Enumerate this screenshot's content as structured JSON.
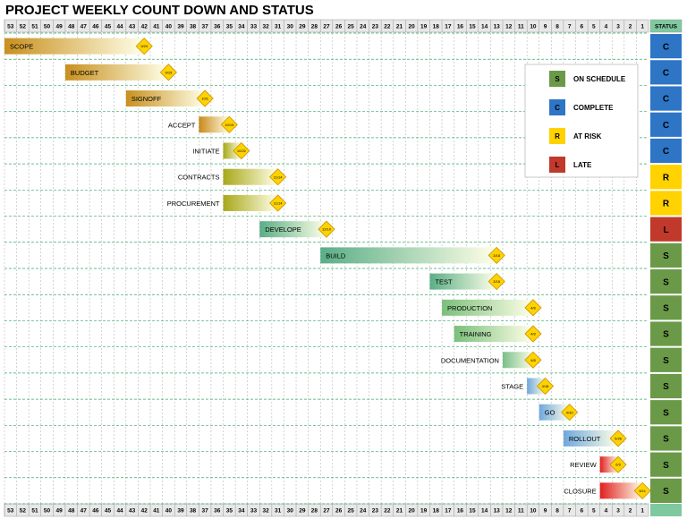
{
  "chart_data": {
    "type": "gantt",
    "title": "PROJECT WEEKLY COUNT DOWN AND STATUS",
    "status_header": "STATUS",
    "weeks": [
      53,
      52,
      51,
      50,
      49,
      48,
      47,
      46,
      45,
      44,
      43,
      42,
      41,
      40,
      39,
      38,
      37,
      36,
      35,
      34,
      33,
      32,
      31,
      30,
      29,
      28,
      27,
      26,
      25,
      24,
      23,
      22,
      21,
      20,
      19,
      18,
      17,
      16,
      15,
      14,
      13,
      12,
      11,
      10,
      9,
      8,
      7,
      6,
      5,
      4,
      3,
      2,
      1
    ],
    "tasks": [
      {
        "name": "SCOPE",
        "date": "9/29",
        "start": 53,
        "end": 42,
        "status": "C",
        "color": "#c8901e"
      },
      {
        "name": "BUDGET",
        "date": "9/15",
        "start": 48,
        "end": 40,
        "status": "C",
        "color": "#c8901e"
      },
      {
        "name": "SIGNOFF",
        "date": "10/1",
        "start": 43,
        "end": 37,
        "status": "C",
        "color": "#c8901e"
      },
      {
        "name": "ACCEPT",
        "date": "10/15",
        "start": 37,
        "end": 35,
        "status": "C",
        "color": "#c98a1a"
      },
      {
        "name": "INITIATE",
        "date": "10/22",
        "start": 35,
        "end": 34,
        "status": "C",
        "color": "#a8a81a"
      },
      {
        "name": "CONTRACTS",
        "date": "11/14",
        "start": 35,
        "end": 31,
        "status": "R",
        "color": "#a8a81a"
      },
      {
        "name": "PROCUREMENT",
        "date": "11/14",
        "start": 35,
        "end": 31,
        "status": "R",
        "color": "#a8a81a"
      },
      {
        "name": "DEVELOPE",
        "date": "12/10",
        "start": 32,
        "end": 27,
        "status": "L",
        "color": "#5aae86"
      },
      {
        "name": "BUILD",
        "date": "3/18",
        "start": 27,
        "end": 13,
        "status": "S",
        "color": "#5aae86"
      },
      {
        "name": "TEST",
        "date": "3/18",
        "start": 18,
        "end": 13,
        "status": "S",
        "color": "#5aae86"
      },
      {
        "name": "PRODUCTION",
        "date": "4/8",
        "start": 17,
        "end": 10,
        "status": "S",
        "color": "#7abf7a"
      },
      {
        "name": "TRAINING",
        "date": "4/8",
        "start": 16,
        "end": 10,
        "status": "S",
        "color": "#7abf7a"
      },
      {
        "name": "DOCUMENTATION",
        "date": "4/8",
        "start": 12,
        "end": 10,
        "status": "S",
        "color": "#7abf8a"
      },
      {
        "name": "STAGE",
        "date": "4/18",
        "start": 10,
        "end": 9,
        "status": "S",
        "color": "#6fa8dc"
      },
      {
        "name": "GO",
        "date": "4/30",
        "start": 9,
        "end": 7,
        "status": "S",
        "color": "#6fa8dc"
      },
      {
        "name": "ROLLOUT",
        "date": "5/26",
        "start": 7,
        "end": 3,
        "status": "S",
        "color": "#6fa8dc"
      },
      {
        "name": "REVIEW",
        "date": "6/3",
        "start": 4,
        "end": 3,
        "status": "S",
        "color": "#e02020"
      },
      {
        "name": "CLOSURE",
        "date": "6/11",
        "start": 4,
        "end": 1,
        "status": "S",
        "color": "#e02020"
      }
    ],
    "legend": [
      {
        "code": "S",
        "label": "ON SCHEDULE",
        "color": "#6a9a48"
      },
      {
        "code": "C",
        "label": "COMPLETE",
        "color": "#2e75c6"
      },
      {
        "code": "R",
        "label": "AT RISK",
        "color": "#ffd200"
      },
      {
        "code": "L",
        "label": "LATE",
        "color": "#c0392b"
      }
    ]
  }
}
